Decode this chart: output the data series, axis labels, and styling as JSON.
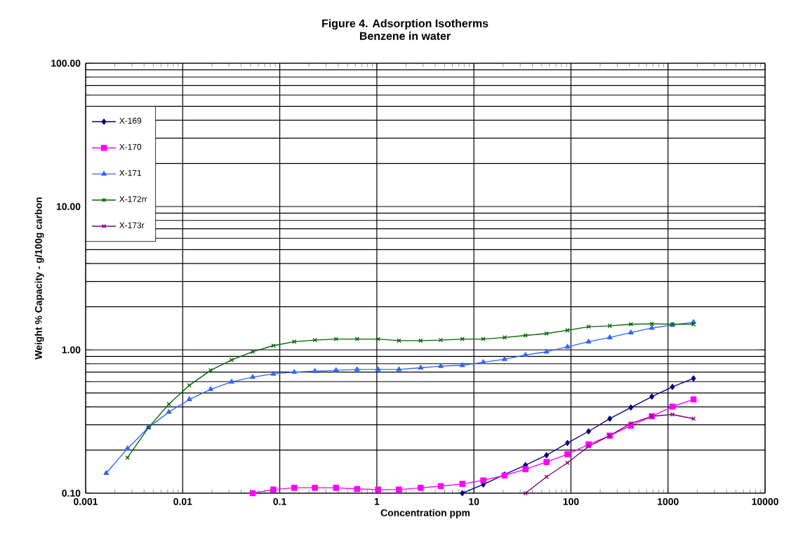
{
  "chart_data": {
    "type": "line",
    "title": "Figure 4. Adsorption Isotherms",
    "subtitle": "Benzene in water",
    "xlabel": "Concentration ppm",
    "ylabel": "Weight % Capacity - g/100g carbon",
    "log": "xy",
    "xlim": [
      0.001,
      10000
    ],
    "ylim": [
      0.1,
      100
    ],
    "xticks": [
      0.001,
      0.01,
      0.1,
      1,
      10,
      100,
      1000,
      10000
    ],
    "yticks": [
      {
        "value": 0.1,
        "label": "0.10"
      },
      {
        "value": 1,
        "label": "1.00"
      },
      {
        "value": 10,
        "label": "10.00"
      },
      {
        "value": 100,
        "label": "100.00"
      }
    ],
    "grid": true,
    "legend": "top left",
    "series": [
      {
        "name": "X-169",
        "color": "#000080",
        "marker": "diamond",
        "x": [
          7.6,
          12.5,
          20.7,
          34,
          56,
          92,
          152,
          251,
          414,
          681,
          1110,
          1830
        ],
        "values": [
          0.1,
          0.115,
          0.135,
          0.157,
          0.184,
          0.224,
          0.27,
          0.331,
          0.396,
          0.472,
          0.552,
          0.632
        ]
      },
      {
        "name": "X-170",
        "color": "#ff00ff",
        "marker": "square",
        "x": [
          0.0526,
          0.0859,
          0.141,
          0.23,
          0.38,
          0.626,
          1.03,
          1.69,
          2.83,
          4.56,
          7.6,
          12.5,
          20.7,
          34,
          56,
          92,
          152,
          251,
          414,
          681,
          1110,
          1830
        ],
        "values": [
          0.1,
          0.106,
          0.109,
          0.109,
          0.109,
          0.107,
          0.106,
          0.106,
          0.109,
          0.112,
          0.116,
          0.123,
          0.133,
          0.147,
          0.165,
          0.187,
          0.219,
          0.252,
          0.296,
          0.344,
          0.402,
          0.451
        ]
      },
      {
        "name": "X-171",
        "color": "#3366ff",
        "marker": "triangle",
        "x": [
          0.00163,
          0.0027,
          0.00444,
          0.0072,
          0.0117,
          0.0194,
          0.0319,
          0.0526,
          0.0859,
          0.141,
          0.23,
          0.38,
          0.626,
          1.03,
          1.69,
          2.83,
          4.56,
          7.6,
          12.5,
          20.7,
          34,
          56,
          92,
          152,
          251,
          414,
          681,
          1110,
          1830
        ],
        "values": [
          0.138,
          0.205,
          0.287,
          0.368,
          0.451,
          0.531,
          0.598,
          0.645,
          0.68,
          0.7,
          0.71,
          0.72,
          0.73,
          0.73,
          0.73,
          0.75,
          0.77,
          0.78,
          0.82,
          0.86,
          0.92,
          0.97,
          1.05,
          1.14,
          1.22,
          1.32,
          1.42,
          1.49,
          1.56
        ]
      },
      {
        "name": "X-172rr",
        "color": "#006600",
        "marker": "cross",
        "x": [
          0.0027,
          0.00444,
          0.0072,
          0.0117,
          0.0194,
          0.0319,
          0.0526,
          0.0859,
          0.141,
          0.23,
          0.38,
          0.626,
          1.03,
          1.69,
          2.83,
          4.56,
          7.6,
          12.5,
          20.7,
          34,
          56,
          92,
          152,
          251,
          414,
          681,
          1110,
          1830
        ],
        "values": [
          0.177,
          0.287,
          0.418,
          0.565,
          0.72,
          0.85,
          0.97,
          1.07,
          1.14,
          1.17,
          1.19,
          1.19,
          1.19,
          1.16,
          1.16,
          1.17,
          1.19,
          1.19,
          1.22,
          1.26,
          1.3,
          1.37,
          1.45,
          1.47,
          1.51,
          1.52,
          1.51,
          1.51
        ]
      },
      {
        "name": "X-173r",
        "color": "#800080",
        "marker": "cross",
        "x": [
          34,
          56,
          92,
          152,
          251,
          414,
          681,
          1110,
          1830
        ],
        "values": [
          0.1,
          0.13,
          0.163,
          0.212,
          0.252,
          0.307,
          0.344,
          0.354,
          0.331
        ]
      }
    ]
  }
}
